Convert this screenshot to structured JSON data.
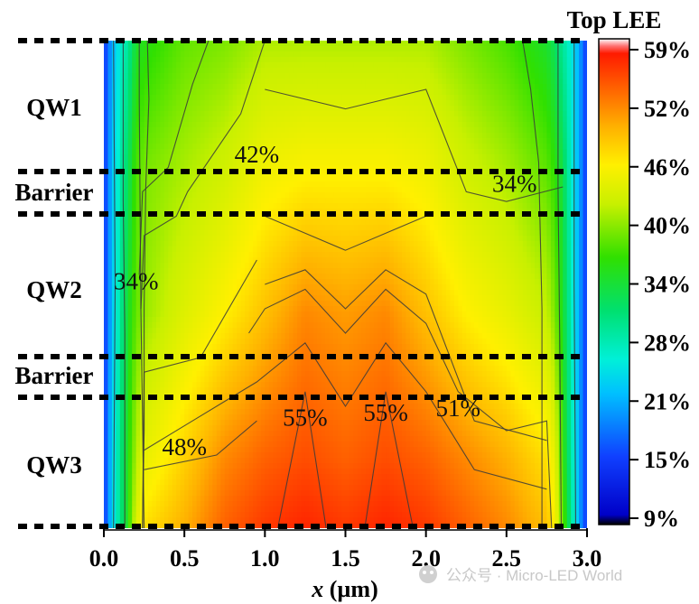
{
  "chart_data": {
    "type": "heatmap",
    "title": "Top LEE",
    "xlabel": "x (µm)",
    "xlabel_italic_part": "x",
    "xlabel_unit_part": " (µm)",
    "xlim": [
      0.0,
      3.0
    ],
    "x_ticks": [
      "0.0",
      "0.5",
      "1.0",
      "1.5",
      "2.0",
      "2.5",
      "3.0"
    ],
    "colorbar": {
      "ticks": [
        "59%",
        "52%",
        "46%",
        "40%",
        "34%",
        "28%",
        "21%",
        "15%",
        "9%"
      ],
      "range_percent": [
        9,
        59
      ]
    },
    "layers": [
      {
        "label": "QW1"
      },
      {
        "label": "Barrier"
      },
      {
        "label": "QW2"
      },
      {
        "label": "Barrier"
      },
      {
        "label": "QW3"
      }
    ],
    "x_samples": [
      0.0,
      0.05,
      0.1,
      0.15,
      0.2,
      0.25,
      0.5,
      0.75,
      1.0,
      1.25,
      1.5,
      1.75,
      2.0,
      2.25,
      2.5,
      2.75,
      2.8,
      2.85,
      2.9,
      2.95,
      3.0
    ],
    "row_positions": [
      0,
      0.28,
      0.56,
      0.86,
      1.0
    ],
    "rows_lee_percent": [
      [
        14,
        20,
        25,
        28,
        33,
        34,
        37,
        38,
        40,
        40,
        40,
        40,
        40,
        38,
        36,
        33,
        31,
        28,
        25,
        20,
        14
      ],
      [
        14,
        21,
        27,
        31,
        36,
        38,
        40,
        42,
        45,
        46,
        46,
        46,
        45,
        42,
        40,
        37,
        35,
        32,
        26,
        20,
        14
      ],
      [
        14,
        21,
        28,
        33,
        37,
        39,
        43,
        46,
        49,
        52,
        51,
        52,
        49,
        46,
        44,
        41,
        38,
        33,
        27,
        20,
        14
      ],
      [
        14,
        22,
        29,
        34,
        40,
        44,
        48,
        52,
        54,
        55,
        54,
        55,
        54,
        52,
        50,
        47,
        44,
        35,
        28,
        20,
        14
      ],
      [
        14,
        22,
        29,
        34,
        43,
        47,
        50,
        54,
        56,
        57,
        56,
        57,
        56,
        54,
        52,
        49,
        46,
        37,
        29,
        20,
        14
      ]
    ],
    "contour_levels": [
      "34%",
      "42%",
      "34%",
      "34%",
      "48%",
      "55%",
      "55%",
      "51%"
    ],
    "contour_labels": [
      {
        "text": "42%",
        "x": 0.95,
        "y_frac": 0.25
      },
      {
        "text": "34%",
        "x": 2.55,
        "y_frac": 0.31
      },
      {
        "text": "34%",
        "x": 0.2,
        "y_frac": 0.51
      },
      {
        "text": "48%",
        "x": 0.5,
        "y_frac": 0.85
      },
      {
        "text": "55%",
        "x": 1.25,
        "y_frac": 0.79
      },
      {
        "text": "55%",
        "x": 1.75,
        "y_frac": 0.78
      },
      {
        "text": "51%",
        "x": 2.2,
        "y_frac": 0.77
      }
    ],
    "grid": false
  },
  "watermark": "公众号 · Micro-LED World"
}
